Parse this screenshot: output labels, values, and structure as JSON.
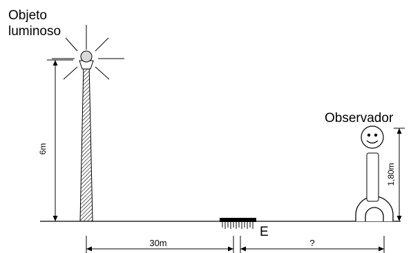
{
  "labels": {
    "object_line1": "Objeto",
    "object_line2": "luminoso",
    "observer": "Observador",
    "lamp_height": "6m",
    "observer_height": "1,80m",
    "distance_lamp_mirror": "30m",
    "mirror_letter": "E",
    "distance_unknown": "?"
  },
  "colors": {
    "ink": "#000000",
    "background": "#ffffff"
  }
}
